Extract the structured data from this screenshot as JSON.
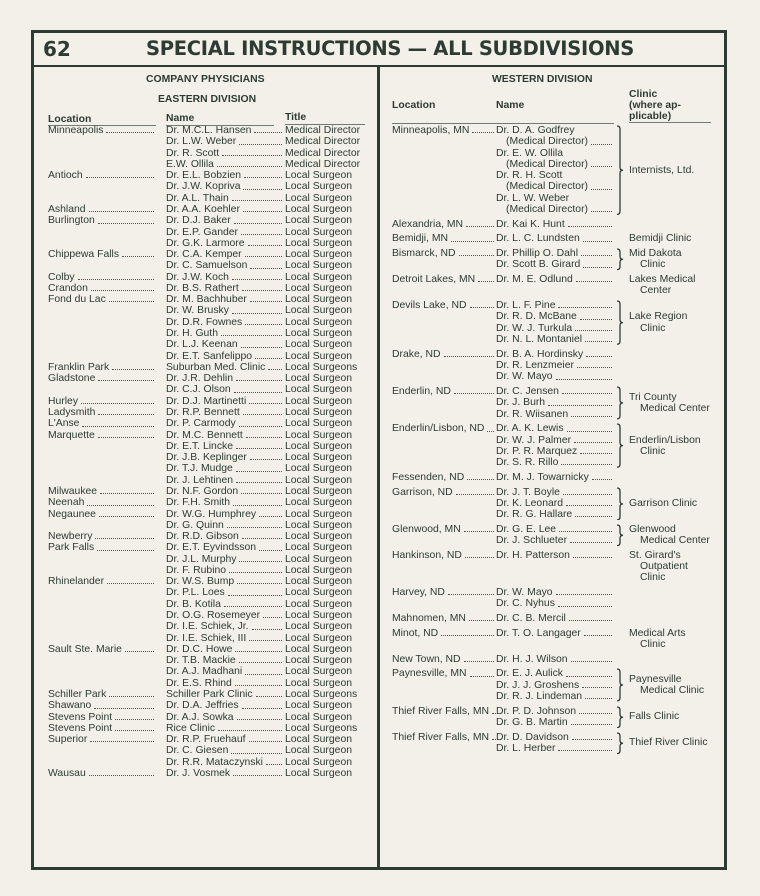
{
  "header": {
    "page_number": "62",
    "title": "SPECIAL INSTRUCTIONS — ALL SUBDIVISIONS"
  },
  "left": {
    "heading": "COMPANY PHYSICIANS",
    "division": "EASTERN DIVISION",
    "columns": {
      "location": "Location",
      "name": "Name",
      "title": "Title"
    },
    "rows": [
      {
        "location": "Minneapolis",
        "name": "Dr. M.C.L. Hansen",
        "title": "Medical Director"
      },
      {
        "location": "",
        "name": "Dr. L.W. Weber",
        "title": "Medical Director"
      },
      {
        "location": "",
        "name": "Dr. R. Scott",
        "title": "Medical Director"
      },
      {
        "location": "",
        "name": "E.W. Ollila",
        "title": "Medical Director"
      },
      {
        "location": "Antioch",
        "name": "Dr. E.L. Bobzien",
        "title": "Local Surgeon"
      },
      {
        "location": "",
        "name": "Dr. J.W. Kopriva",
        "title": "Local Surgeon"
      },
      {
        "location": "",
        "name": "Dr. A.L. Thain",
        "title": "Local Surgeon"
      },
      {
        "location": "Ashland",
        "name": "Dr. A.A. Koehler",
        "title": "Local Surgeon"
      },
      {
        "location": "Burlington",
        "name": "Dr. D.J. Baker",
        "title": "Local Surgeon"
      },
      {
        "location": "",
        "name": "Dr. E.P. Gander",
        "title": "Local Surgeon"
      },
      {
        "location": "",
        "name": "Dr. G.K. Larmore",
        "title": "Local Surgeon"
      },
      {
        "location": "Chippewa Falls",
        "name": "Dr. C.A. Kemper",
        "title": "Local Surgeon"
      },
      {
        "location": "",
        "name": "Dr. C. Samuelson",
        "title": "Local Surgeon"
      },
      {
        "location": "Colby",
        "name": "Dr. J.W. Koch",
        "title": "Local Surgeon"
      },
      {
        "location": "Crandon",
        "name": "Dr. B.S. Rathert",
        "title": "Local Surgeon"
      },
      {
        "location": "Fond du Lac",
        "name": "Dr. M. Bachhuber",
        "title": "Local Surgeon"
      },
      {
        "location": "",
        "name": "Dr. W. Brusky",
        "title": "Local Surgeon"
      },
      {
        "location": "",
        "name": "Dr. D.R. Fownes",
        "title": "Local Surgeon"
      },
      {
        "location": "",
        "name": "Dr. H. Guth",
        "title": "Local Surgeon"
      },
      {
        "location": "",
        "name": "Dr. L.J. Keenan",
        "title": "Local Surgeon"
      },
      {
        "location": "",
        "name": "Dr. E.T. Sanfelippo",
        "title": "Local Surgeon"
      },
      {
        "location": "Franklin Park",
        "name": "Suburban Med. Clinic",
        "title": "Local Surgeons"
      },
      {
        "location": "Gladstone",
        "name": "Dr. J.R. Dehlin",
        "title": "Local Surgeon"
      },
      {
        "location": "",
        "name": "Dr. C.J. Olson",
        "title": "Local Surgeon"
      },
      {
        "location": "Hurley",
        "name": "Dr. D.J. Martinetti",
        "title": "Local Surgeon"
      },
      {
        "location": "Ladysmith",
        "name": "Dr. R.P. Bennett",
        "title": "Local Surgeon"
      },
      {
        "location": "L'Anse",
        "name": "Dr. P. Carmody",
        "title": "Local Surgeon"
      },
      {
        "location": "Marquette",
        "name": "Dr. M.C. Bennett",
        "title": "Local Surgeon"
      },
      {
        "location": "",
        "name": "Dr. E.T. Lincke",
        "title": "Local Surgeon"
      },
      {
        "location": "",
        "name": "Dr. J.B. Keplinger",
        "title": "Local Surgeon"
      },
      {
        "location": "",
        "name": "Dr. T.J. Mudge",
        "title": "Local Surgeon"
      },
      {
        "location": "",
        "name": "Dr. J. Lehtinen",
        "title": "Local Surgeon"
      },
      {
        "location": "Milwaukee",
        "name": "Dr. N.F. Gordon",
        "title": "Local Surgeon"
      },
      {
        "location": "Neenah",
        "name": "Dr. F.H. Smith",
        "title": "Local Surgeon"
      },
      {
        "location": "Negaunee",
        "name": "Dr. W.G. Humphrey",
        "title": "Local Surgeon"
      },
      {
        "location": "",
        "name": "Dr. G. Quinn",
        "title": "Local Surgeon"
      },
      {
        "location": "Newberry",
        "name": "Dr. R.D. Gibson",
        "title": "Local Surgeon"
      },
      {
        "location": "Park Falls",
        "name": "Dr. E.T. Eyvindsson",
        "title": "Local Surgeon"
      },
      {
        "location": "",
        "name": "Dr. J.L. Murphy",
        "title": "Local Surgeon"
      },
      {
        "location": "",
        "name": "Dr. F. Rubino",
        "title": "Local Surgeon"
      },
      {
        "location": "Rhinelander",
        "name": "Dr. W.S. Bump",
        "title": "Local Surgeon"
      },
      {
        "location": "",
        "name": "Dr. P.L. Loes",
        "title": "Local Surgeon"
      },
      {
        "location": "",
        "name": "Dr. B. Kotila",
        "title": "Local Surgeon"
      },
      {
        "location": "",
        "name": "Dr. O.G. Rosemeyer",
        "title": "Local Surgeon"
      },
      {
        "location": "",
        "name": "Dr. I.E. Schiek, Jr.",
        "title": "Local Surgeon"
      },
      {
        "location": "",
        "name": "Dr. I.E. Schiek, III",
        "title": "Local Surgeon"
      },
      {
        "location": "Sault Ste. Marie",
        "name": "Dr. D.C. Howe",
        "title": "Local Surgeon"
      },
      {
        "location": "",
        "name": "Dr. T.B. Mackie",
        "title": "Local Surgeon"
      },
      {
        "location": "",
        "name": "Dr. A.J. Madhani",
        "title": "Local Surgeon"
      },
      {
        "location": "",
        "name": "Dr. E.S. Rhind",
        "title": "Local Surgeon"
      },
      {
        "location": "Schiller Park",
        "name": "Schiller Park Clinic",
        "title": "Local Surgeons"
      },
      {
        "location": "Shawano",
        "name": "Dr. D.A. Jeffries",
        "title": "Local Surgeon"
      },
      {
        "location": "Stevens Point",
        "name": "Dr. A.J. Sowka",
        "title": "Local Surgeon"
      },
      {
        "location": "Stevens Point",
        "name": "Rice Clinic",
        "title": "Local Surgeons"
      },
      {
        "location": "Superior",
        "name": "Dr. R.P. Fruehauf",
        "title": "Local Surgeon"
      },
      {
        "location": "",
        "name": "Dr. C. Giesen",
        "title": "Local Surgeon"
      },
      {
        "location": "",
        "name": "Dr. R.R. Mataczynski",
        "title": "Local Surgeon"
      },
      {
        "location": "Wausau",
        "name": "Dr. J. Vosmek",
        "title": "Local Surgeon"
      }
    ]
  },
  "right": {
    "division": "WESTERN DIVISION",
    "columns": {
      "location": "Location",
      "name": "Name",
      "clinic": [
        "Clinic",
        "(where ap-",
        "plicable)"
      ]
    },
    "groups": [
      {
        "location": "Minneapolis, MN",
        "names": [
          "Dr. D. A. Godfrey",
          "(Medical Director)",
          "Dr. E. W. Ollila",
          "(Medical Director)",
          "Dr. R. H. Scott",
          "(Medical Director)",
          "Dr. L. W. Weber",
          "(Medical Director)"
        ],
        "clinic": [
          "Internists, Ltd."
        ],
        "brace": true
      },
      {
        "location": "Alexandria, MN",
        "names": [
          "Dr. Kai K. Hunt"
        ],
        "clinic": []
      },
      {
        "location": "Bemidji, MN",
        "names": [
          "Dr. L. C. Lundsten"
        ],
        "clinic": [
          "Bemidji Clinic"
        ]
      },
      {
        "location": "Bismarck, ND",
        "names": [
          "Dr. Phillip O. Dahl",
          "Dr. Scott B. Girard"
        ],
        "clinic": [
          "Mid Dakota",
          "Clinic"
        ],
        "brace": true
      },
      {
        "location": "Detroit Lakes, MN",
        "names": [
          "Dr. M. E. Odlund"
        ],
        "clinic": [
          "Lakes Medical",
          "Center"
        ]
      },
      {
        "location": "Devils Lake, ND",
        "names": [
          "Dr. L. F. Pine",
          "Dr. R. D. McBane",
          "Dr. W. J. Turkula",
          "Dr. N. L. Montaniel"
        ],
        "clinic": [
          "Lake Region",
          "Clinic"
        ],
        "brace": true
      },
      {
        "location": "Drake, ND",
        "names": [
          "Dr. B. A. Hordinsky",
          "Dr. R. Lenzmeier",
          "Dr. W. Mayo"
        ],
        "clinic": []
      },
      {
        "location": "Enderlin, ND",
        "names": [
          "Dr. C. Jensen",
          "Dr. J. Burh",
          "Dr. R. Wiisanen"
        ],
        "clinic": [
          "Tri County",
          "Medical Center"
        ],
        "brace": true
      },
      {
        "location": "Enderlin/Lisbon, ND",
        "names": [
          "Dr. A. K. Lewis",
          "Dr. W. J. Palmer",
          "Dr. P. R. Marquez",
          "Dr. S. R. Rillo"
        ],
        "clinic": [
          "Enderlin/Lisbon",
          "Clinic"
        ],
        "brace": true
      },
      {
        "location": "Fessenden, ND",
        "names": [
          "Dr. M. J. Towarnicky"
        ],
        "clinic": []
      },
      {
        "location": "Garrison, ND",
        "names": [
          "Dr. J. T. Boyle",
          "Dr. K. Leonard",
          "Dr. R. G. Hallare"
        ],
        "clinic": [
          "Garrison Clinic"
        ],
        "brace": true
      },
      {
        "location": "Glenwood, MN",
        "names": [
          "Dr. G. E. Lee",
          "Dr. J. Schlueter"
        ],
        "clinic": [
          "Glenwood",
          "Medical Center"
        ],
        "brace": true
      },
      {
        "location": "Hankinson, ND",
        "names": [
          "Dr. H. Patterson"
        ],
        "clinic": [
          "St. Girard's",
          "Outpatient",
          "Clinic"
        ]
      },
      {
        "location": "Harvey, ND",
        "names": [
          "Dr. W. Mayo",
          "Dr. C. Nyhus"
        ],
        "clinic": []
      },
      {
        "location": "Mahnomen, MN",
        "names": [
          "Dr. C. B. Mercil"
        ],
        "clinic": []
      },
      {
        "location": "Minot, ND",
        "names": [
          "Dr. T. O. Langager"
        ],
        "clinic": [
          "Medical Arts",
          "Clinic"
        ]
      },
      {
        "location": "New Town, ND",
        "names": [
          "Dr. H. J. Wilson"
        ],
        "clinic": []
      },
      {
        "location": "Paynesville, MN",
        "names": [
          "Dr. E. J. Aulick",
          "Dr. J. J. Groshens",
          "Dr. R. J. Lindeman"
        ],
        "clinic": [
          "Paynesville",
          "Medical Clinic"
        ],
        "brace": true
      },
      {
        "location": "Thief River Falls, MN",
        "names": [
          "Dr. P. D. Johnson",
          "Dr. G. B. Martin"
        ],
        "clinic": [
          "Falls Clinic"
        ],
        "brace": true
      },
      {
        "location": "Thief River Falls, MN",
        "names": [
          "Dr. D. Davidson",
          "Dr. L. Herber"
        ],
        "clinic": [
          "Thief River Clinic"
        ],
        "brace": true
      }
    ]
  },
  "colors": {
    "ink": "#2e3b35",
    "paper": "#f2f0e8"
  }
}
